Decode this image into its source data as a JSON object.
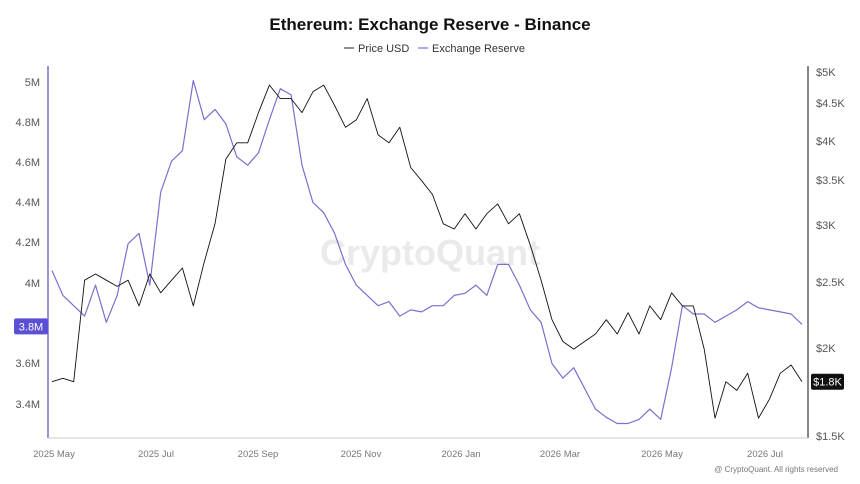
{
  "chart_data": {
    "type": "line",
    "title": "Ethereum: Exchange Reserve - Binance",
    "legend": [
      "Price USD",
      "Exchange Reserve"
    ],
    "legend_position": "top-center",
    "x_ticks": [
      "2025 May",
      "2025 Jul",
      "2025 Sep",
      "2025 Nov",
      "2026 Jan",
      "2026 Mar",
      "2026 May",
      "2026 Jul"
    ],
    "left_axis": {
      "ticks": [
        "5M",
        "4.8M",
        "4.6M",
        "4.4M",
        "4.2M",
        "4M",
        "3.6M",
        "3.4M"
      ],
      "tick_values": [
        5000000,
        4800000,
        4600000,
        4400000,
        4200000,
        4000000,
        3600000,
        3400000
      ],
      "ylim": [
        3260000,
        5060000
      ],
      "current_label": "3.8M",
      "current_value": 3800000
    },
    "right_axis": {
      "ticks": [
        "$5K",
        "$4.5K",
        "$4K",
        "$3.5K",
        "$3K",
        "$2.5K",
        "$2K",
        "$1.5K"
      ],
      "tick_values": [
        5000,
        4500,
        4000,
        3500,
        3000,
        2500,
        2000,
        1500
      ],
      "scale": "log",
      "ylim": [
        1500,
        5000
      ],
      "current_label": "$1.8K",
      "current_value": 1800
    },
    "series": [
      {
        "name": "Exchange Reserve",
        "color": "#7B6FD0",
        "axis": "left",
        "x_start": "2025-05-01",
        "x_step_days": 7,
        "values": [
          4070000,
          3950000,
          3900000,
          3850000,
          4000000,
          3820000,
          3950000,
          4200000,
          4250000,
          4000000,
          4450000,
          4600000,
          4650000,
          4990000,
          4800000,
          4850000,
          4780000,
          4620000,
          4580000,
          4640000,
          4800000,
          4950000,
          4920000,
          4580000,
          4400000,
          4350000,
          4250000,
          4100000,
          4000000,
          3950000,
          3900000,
          3920000,
          3850000,
          3880000,
          3870000,
          3900000,
          3900000,
          3950000,
          3960000,
          4000000,
          3950000,
          4100000,
          4100000,
          4000000,
          3880000,
          3820000,
          3620000,
          3550000,
          3600000,
          3500000,
          3400000,
          3360000,
          3330000,
          3330000,
          3350000,
          3400000,
          3350000,
          3600000,
          3900000,
          3860000,
          3860000,
          3820000,
          3850000,
          3880000,
          3920000,
          3890000,
          3880000,
          3870000,
          3860000,
          3810000
        ],
        "final_value": 3800000
      },
      {
        "name": "Price USD",
        "color": "#111111",
        "axis": "right",
        "x_start": "2025-05-01",
        "x_step_days": 7,
        "values": [
          1800,
          1820,
          1800,
          2500,
          2550,
          2500,
          2450,
          2500,
          2300,
          2550,
          2400,
          2500,
          2600,
          2300,
          2650,
          3000,
          3700,
          3900,
          3900,
          4300,
          4700,
          4500,
          4500,
          4300,
          4600,
          4700,
          4400,
          4100,
          4200,
          4500,
          4000,
          3900,
          4100,
          3600,
          3450,
          3300,
          3000,
          2950,
          3100,
          2950,
          3100,
          3200,
          3000,
          3100,
          2800,
          2500,
          2200,
          2050,
          2000,
          2050,
          2100,
          2200,
          2100,
          2250,
          2100,
          2300,
          2200,
          2400,
          2300,
          2300,
          2000,
          1600,
          1800,
          1750,
          1850,
          1600,
          1700,
          1850,
          1900,
          1800
        ],
        "final_value": 1800
      }
    ],
    "watermark": "CryptoQuant",
    "copyright": "@ CryptoQuant. All rights reserved"
  }
}
